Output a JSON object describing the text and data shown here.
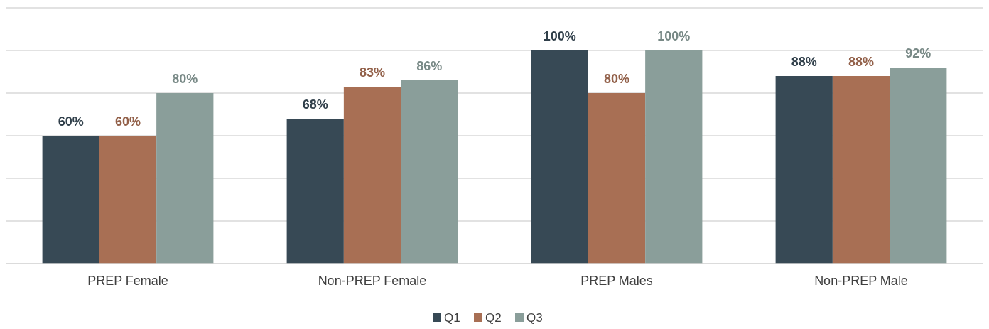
{
  "chart_data": {
    "type": "bar",
    "categories": [
      "PREP Female",
      "Non-PREP Female",
      "PREP Males",
      "Non-PREP Male"
    ],
    "series": [
      {
        "name": "Q1",
        "color": "#374955",
        "values": [
          60,
          68,
          100,
          88
        ],
        "value_labels": [
          "60%",
          "68%",
          "100%",
          "88%"
        ]
      },
      {
        "name": "Q2",
        "color": "#a86f54",
        "values": [
          60,
          83,
          80,
          88
        ],
        "value_labels": [
          "60%",
          "83%",
          "80%",
          "88%"
        ]
      },
      {
        "name": "Q3",
        "color": "#8a9e9a",
        "values": [
          80,
          86,
          100,
          92
        ],
        "value_labels": [
          "80%",
          "86%",
          "100%",
          "92%"
        ]
      }
    ],
    "ylim": [
      0,
      120
    ],
    "yticks": [
      {
        "value": 0,
        "label": null
      },
      {
        "value": 20,
        "label": null
      },
      {
        "value": 40,
        "label": null
      },
      {
        "value": 60,
        "label": null
      },
      {
        "value": 80,
        "label": null
      },
      {
        "value": 100,
        "label": null
      },
      {
        "value": 120,
        "label": null
      }
    ],
    "grid": "y",
    "tick_labels": "x",
    "legend": "bottom"
  }
}
